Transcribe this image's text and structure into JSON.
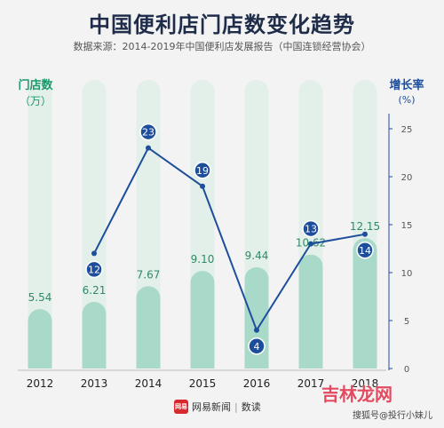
{
  "title": "中国便利店门店数变化趋势",
  "subtitle": "数据来源：2014-2019年中国便利店发展报告（中国连锁经营协会）",
  "left_axis": {
    "label_line1": "门店数",
    "label_line2": "（万）"
  },
  "right_axis": {
    "label_line1": "增长率",
    "label_line2": "(%)",
    "ticks": [
      "0",
      "5",
      "10",
      "15",
      "20",
      "25"
    ]
  },
  "colors": {
    "bar": "#a8d9c9",
    "bar_bg": "#e3efe9",
    "line": "#1d4e9c",
    "value_text": "#2f8a67",
    "left_axis_label": "#1a9a6c",
    "right_axis_label": "#1d4e9c"
  },
  "chart_data": {
    "type": "bar",
    "categories": [
      "2012",
      "2013",
      "2014",
      "2015",
      "2016",
      "2017",
      "2018"
    ],
    "series": [
      {
        "values": [
          5.54,
          6.21,
          7.67,
          9.1,
          9.44,
          10.62,
          12.15
        ]
      },
      {
        "type": "line",
        "axis": "right",
        "x": [
          "2013",
          "2014",
          "2015",
          "2016",
          "2017",
          "2018"
        ],
        "values": [
          12,
          23,
          19,
          4,
          13,
          14
        ]
      }
    ],
    "right_ylim": [
      0,
      25
    ]
  },
  "footer": {
    "brand_logo_text": "网易",
    "brand_name": "网易新闻",
    "brand_section": "数读"
  },
  "watermark": {
    "main": "吉林龙网",
    "sub": "搜狐号@投行小妹儿"
  }
}
